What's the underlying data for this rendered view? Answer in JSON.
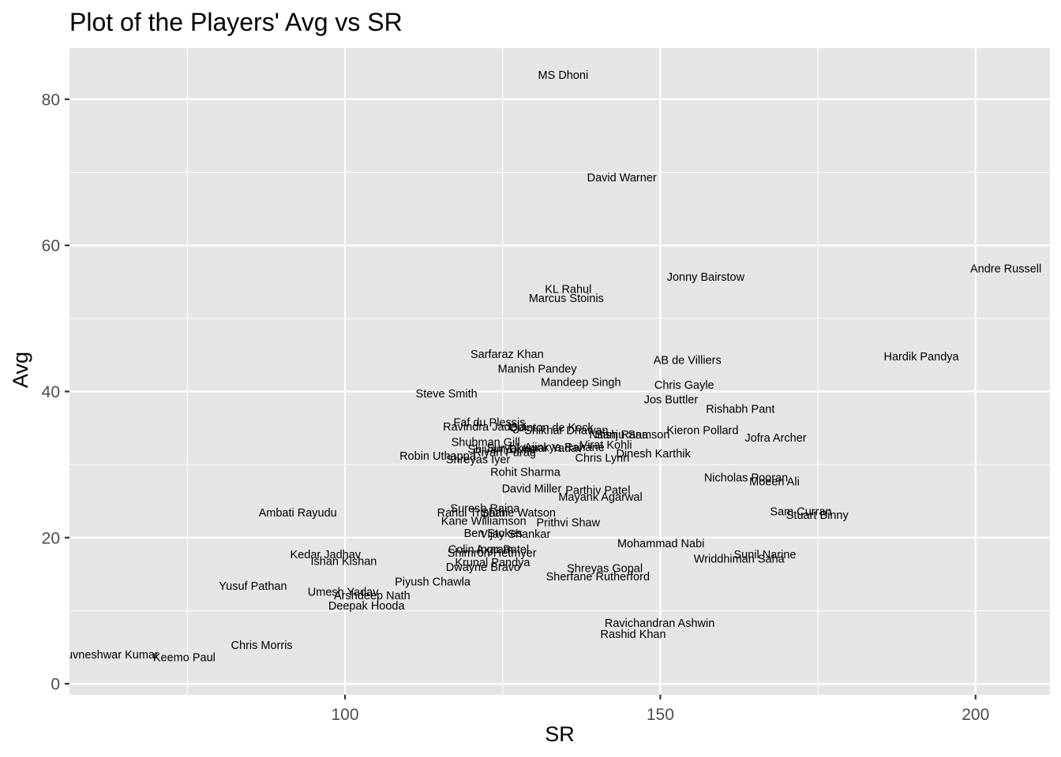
{
  "chart_data": {
    "type": "scatter",
    "title": "Plot of the Players' Avg vs SR",
    "xlabel": "SR",
    "ylabel": "Avg",
    "xlim": [
      56.3,
      211.8
    ],
    "ylim": [
      -1.5,
      87
    ],
    "xticks": [
      100,
      150,
      200
    ],
    "yticks": [
      0,
      20,
      40,
      60,
      80
    ],
    "grid": true,
    "background": "#e5e5e5",
    "gridline_color": "#ffffff",
    "text_color": "#000000",
    "tick_color": "#4d4d4d",
    "points": [
      {
        "label": "MS Dhoni",
        "sr": 134.6,
        "avg": 83.2
      },
      {
        "label": "David Warner",
        "sr": 143.9,
        "avg": 69.2
      },
      {
        "label": "Andre Russell",
        "sr": 204.8,
        "avg": 56.7
      },
      {
        "label": "Jonny Bairstow",
        "sr": 157.2,
        "avg": 55.6
      },
      {
        "label": "KL Rahul",
        "sr": 135.4,
        "avg": 53.9
      },
      {
        "label": "Marcus Stoinis",
        "sr": 135.1,
        "avg": 52.7
      },
      {
        "label": "Sarfaraz Khan",
        "sr": 125.7,
        "avg": 45.0
      },
      {
        "label": "Hardik Pandya",
        "sr": 191.4,
        "avg": 44.7
      },
      {
        "label": "AB de Villiers",
        "sr": 154.3,
        "avg": 44.2
      },
      {
        "label": "Manish Pandey",
        "sr": 130.5,
        "avg": 43.0
      },
      {
        "label": "Mandeep Singh",
        "sr": 137.4,
        "avg": 41.2
      },
      {
        "label": "Chris Gayle",
        "sr": 153.8,
        "avg": 40.8
      },
      {
        "label": "Steve Smith",
        "sr": 116.1,
        "avg": 39.6
      },
      {
        "label": "Jos Buttler",
        "sr": 151.7,
        "avg": 38.8
      },
      {
        "label": "Rishabh Pant",
        "sr": 162.7,
        "avg": 37.5
      },
      {
        "label": "Faf du Plessis",
        "sr": 122.9,
        "avg": 35.7
      },
      {
        "label": "Ravindra Jadeja",
        "sr": 122.1,
        "avg": 35.1
      },
      {
        "label": "Quinton de Kock",
        "sr": 132.7,
        "avg": 35.0
      },
      {
        "label": "Shikhar Dhawan",
        "sr": 135.1,
        "avg": 34.6
      },
      {
        "label": "Kieron Pollard",
        "sr": 156.7,
        "avg": 34.6
      },
      {
        "label": "Nitish Rana",
        "sr": 143.4,
        "avg": 34.0
      },
      {
        "label": "Sanju Samson",
        "sr": 145.6,
        "avg": 34.0
      },
      {
        "label": "Jofra Archer",
        "sr": 168.3,
        "avg": 33.6
      },
      {
        "label": "Virat Kohli",
        "sr": 141.4,
        "avg": 32.6
      },
      {
        "label": "Shubman Gill",
        "sr": 122.3,
        "avg": 33.0
      },
      {
        "label": "Suryakumar Yadav",
        "sr": 130.1,
        "avg": 32.2
      },
      {
        "label": "Ajinkya Rahane",
        "sr": 134.8,
        "avg": 32.3
      },
      {
        "label": "Shivam Dube",
        "sr": 124.9,
        "avg": 32.0
      },
      {
        "label": "Riyan Parag",
        "sr": 125.3,
        "avg": 31.6
      },
      {
        "label": "Dinesh Karthik",
        "sr": 148.9,
        "avg": 31.4
      },
      {
        "label": "Robin Uthappa",
        "sr": 114.7,
        "avg": 31.1
      },
      {
        "label": "Chris Lynn",
        "sr": 140.8,
        "avg": 30.8
      },
      {
        "label": "Shreyas Iyer",
        "sr": 121.1,
        "avg": 30.6
      },
      {
        "label": "Rohit Sharma",
        "sr": 128.6,
        "avg": 28.9
      },
      {
        "label": "Nicholas Pooran",
        "sr": 163.6,
        "avg": 28.1
      },
      {
        "label": "Moeen Ali",
        "sr": 168.1,
        "avg": 27.6
      },
      {
        "label": "David Miller",
        "sr": 129.6,
        "avg": 26.6
      },
      {
        "label": "Parthiv Patel",
        "sr": 140.1,
        "avg": 26.4
      },
      {
        "label": "Mayank Agarwal",
        "sr": 140.5,
        "avg": 25.5
      },
      {
        "label": "Suresh Raina",
        "sr": 122.2,
        "avg": 23.9
      },
      {
        "label": "Ambati Rayudu",
        "sr": 92.5,
        "avg": 23.3
      },
      {
        "label": "Rahul Tripathi",
        "sr": 120.2,
        "avg": 23.3
      },
      {
        "label": "Shane Watson",
        "sr": 127.5,
        "avg": 23.3
      },
      {
        "label": "Sam Curran",
        "sr": 172.3,
        "avg": 23.5
      },
      {
        "label": "Stuart Binny",
        "sr": 174.9,
        "avg": 23.0
      },
      {
        "label": "Kane Williamson",
        "sr": 122.0,
        "avg": 22.2
      },
      {
        "label": "Prithvi Shaw",
        "sr": 135.4,
        "avg": 22.0
      },
      {
        "label": "Ben Stokes",
        "sr": 123.5,
        "avg": 20.5
      },
      {
        "label": "Vijay Shankar",
        "sr": 127.0,
        "avg": 20.4
      },
      {
        "label": "Mohammad Nabi",
        "sr": 150.1,
        "avg": 19.1
      },
      {
        "label": "Colin Ingram",
        "sr": 121.5,
        "avg": 18.3
      },
      {
        "label": "Axar Patel",
        "sr": 125.0,
        "avg": 18.3
      },
      {
        "label": "Shimron Hetmyer",
        "sr": 123.3,
        "avg": 17.8
      },
      {
        "label": "Kedar Jadhav",
        "sr": 96.9,
        "avg": 17.6
      },
      {
        "label": "Sunil Narine",
        "sr": 166.6,
        "avg": 17.6
      },
      {
        "label": "Wriddhiman Saha",
        "sr": 162.5,
        "avg": 17.0
      },
      {
        "label": "Ishan Kishan",
        "sr": 99.8,
        "avg": 16.7
      },
      {
        "label": "Krunal Pandya",
        "sr": 123.4,
        "avg": 16.5
      },
      {
        "label": "Dwayne Bravo",
        "sr": 121.9,
        "avg": 15.9
      },
      {
        "label": "Shreyas Gopal",
        "sr": 141.2,
        "avg": 15.7
      },
      {
        "label": "Sherfane Rutherford",
        "sr": 140.1,
        "avg": 14.6
      },
      {
        "label": "Piyush Chawla",
        "sr": 113.9,
        "avg": 13.9
      },
      {
        "label": "Yusuf Pathan",
        "sr": 85.4,
        "avg": 13.3
      },
      {
        "label": "Umesh Yadav",
        "sr": 99.7,
        "avg": 12.5
      },
      {
        "label": "Arshdeep Nath",
        "sr": 104.3,
        "avg": 12.0
      },
      {
        "label": "Deepak Hooda",
        "sr": 103.4,
        "avg": 10.6
      },
      {
        "label": "Ravichandran Ashwin",
        "sr": 149.9,
        "avg": 8.2
      },
      {
        "label": "Rashid Khan",
        "sr": 145.7,
        "avg": 6.7
      },
      {
        "label": "Chris Morris",
        "sr": 86.8,
        "avg": 5.2
      },
      {
        "label": "Bhuvneshwar Kumar",
        "sr": 62.0,
        "avg": 3.9
      },
      {
        "label": "Keemo Paul",
        "sr": 74.5,
        "avg": 3.5
      }
    ]
  }
}
